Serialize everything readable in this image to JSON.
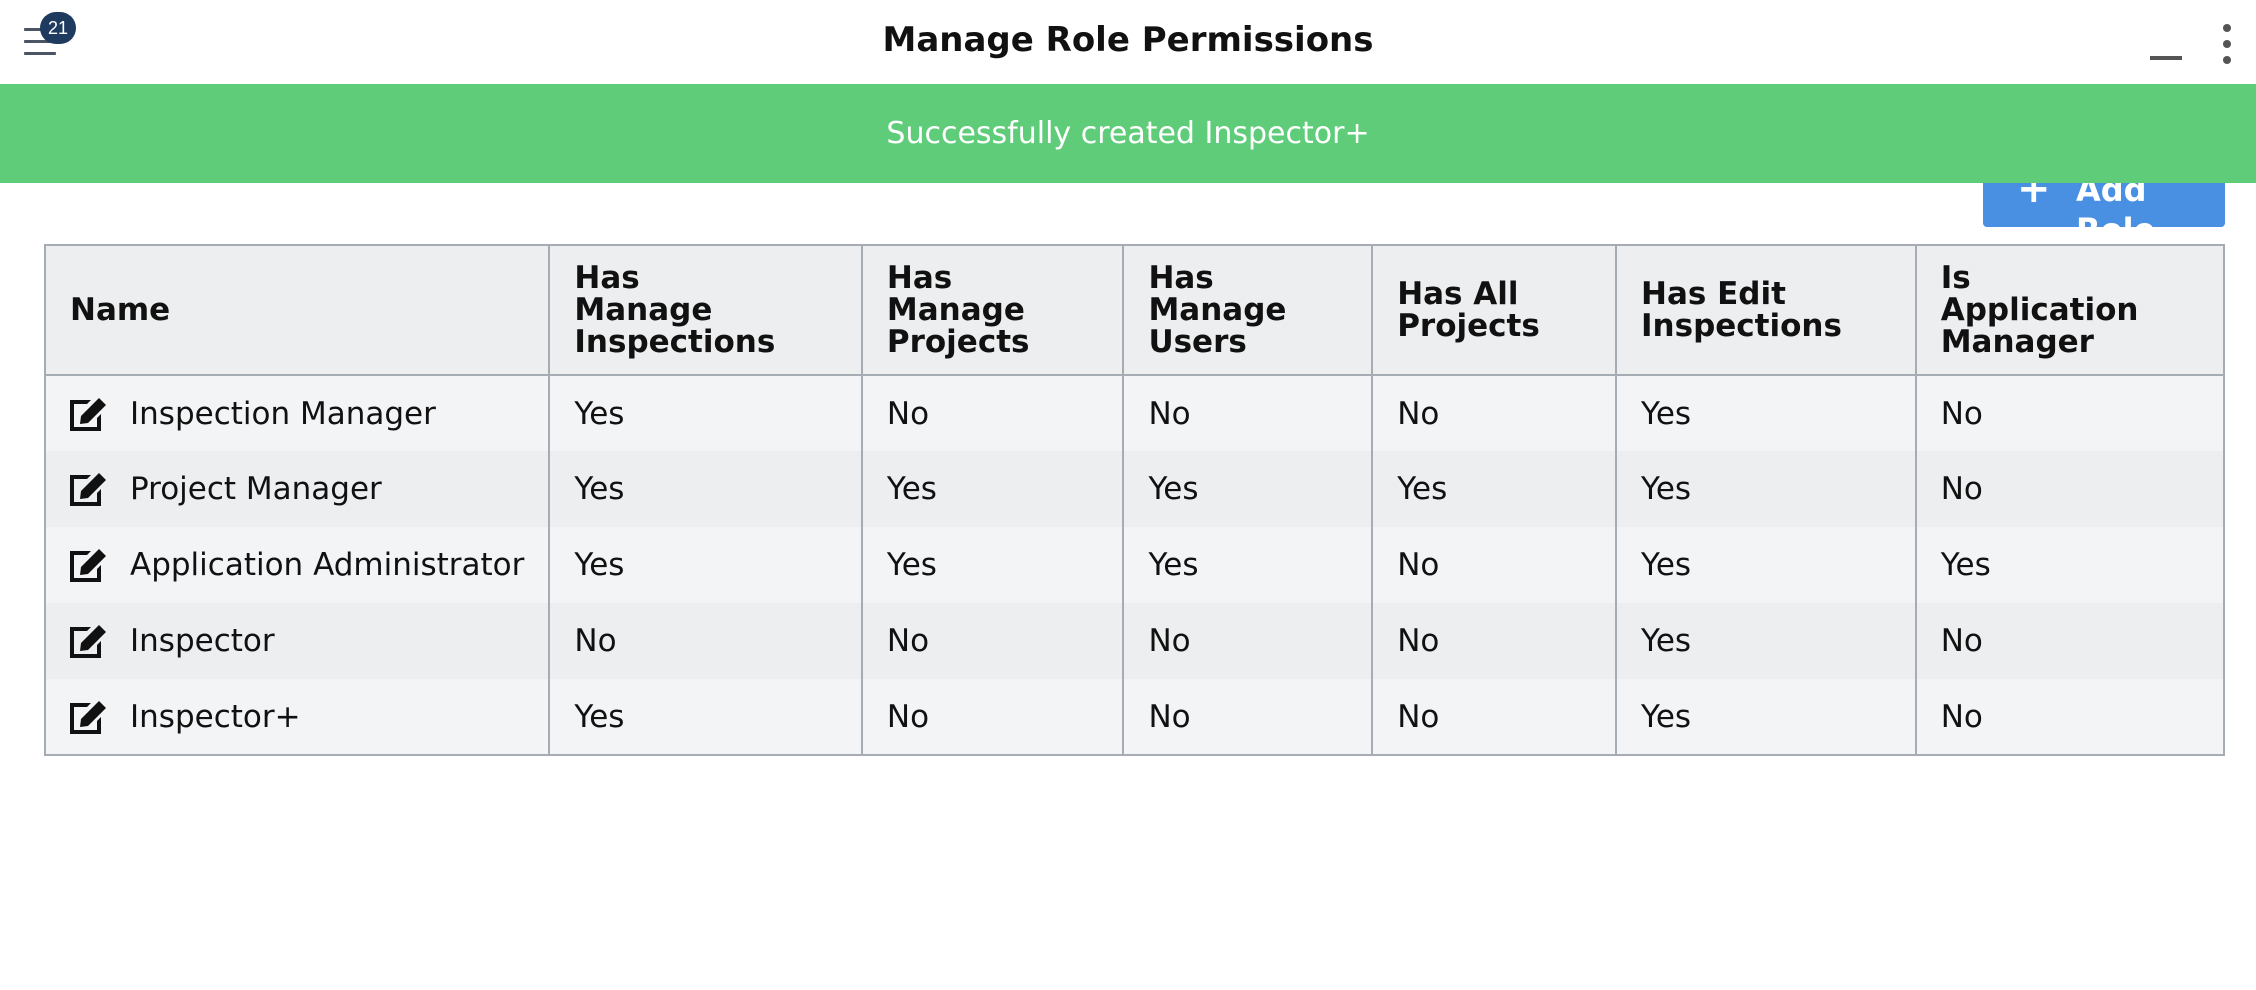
{
  "header": {
    "title": "Manage Role Permissions",
    "notification_count": "21",
    "menu_icon": "hamburger-icon",
    "minimize_icon": "minimize-icon",
    "more_icon": "more-vertical-icon"
  },
  "toast": {
    "message": "Successfully created Inspector+",
    "color": "#5fcc7a"
  },
  "toolbar": {
    "add_role_label": "Add Role",
    "add_role_icon": "plus-icon",
    "accent": "#4a90e2"
  },
  "table": {
    "columns": [
      "Name",
      "Has Manage Inspections",
      "Has Manage Projects",
      "Has Manage Users",
      "Has All Projects",
      "Has Edit Inspections",
      "Is Application Manager"
    ],
    "rows": [
      {
        "name": "Inspection Manager",
        "values": [
          "Yes",
          "No",
          "No",
          "No",
          "Yes",
          "No"
        ]
      },
      {
        "name": "Project Manager",
        "values": [
          "Yes",
          "Yes",
          "Yes",
          "Yes",
          "Yes",
          "No"
        ]
      },
      {
        "name": "Application Administrator",
        "values": [
          "Yes",
          "Yes",
          "Yes",
          "No",
          "Yes",
          "Yes"
        ]
      },
      {
        "name": "Inspector",
        "values": [
          "No",
          "No",
          "No",
          "No",
          "Yes",
          "No"
        ]
      },
      {
        "name": "Inspector+",
        "values": [
          "Yes",
          "No",
          "No",
          "No",
          "Yes",
          "No"
        ]
      }
    ],
    "row_icon": "edit-icon"
  }
}
